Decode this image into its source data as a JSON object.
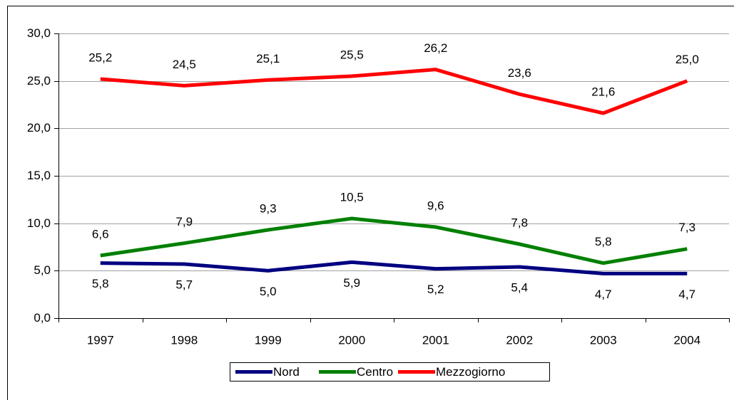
{
  "chart_data": {
    "type": "line",
    "categories": [
      "1997",
      "1998",
      "1999",
      "2000",
      "2001",
      "2002",
      "2003",
      "2004"
    ],
    "series": [
      {
        "name": "Nord",
        "color": "#000080",
        "values": [
          5.8,
          5.7,
          5.0,
          5.9,
          5.2,
          5.4,
          4.7,
          4.7
        ],
        "value_labels": [
          "5,8",
          "5,7",
          "5,0",
          "5,9",
          "5,2",
          "5,4",
          "4,7",
          "4,7"
        ]
      },
      {
        "name": "Centro",
        "color": "#008000",
        "values": [
          6.6,
          7.9,
          9.3,
          10.5,
          9.6,
          7.8,
          5.8,
          7.3
        ],
        "value_labels": [
          "6,6",
          "7,9",
          "9,3",
          "10,5",
          "9,6",
          "7,8",
          "5,8",
          "7,3"
        ]
      },
      {
        "name": "Mezzogiorno",
        "color": "#ff0000",
        "values": [
          25.2,
          24.5,
          25.1,
          25.5,
          26.2,
          23.6,
          21.6,
          25.0
        ],
        "value_labels": [
          "25,2",
          "24,5",
          "25,1",
          "25,5",
          "26,2",
          "23,6",
          "21,6",
          "25,0"
        ]
      }
    ],
    "ylim": [
      0,
      30
    ],
    "yticks": [
      {
        "value": 0,
        "label": "0,0"
      },
      {
        "value": 5,
        "label": "5,0"
      },
      {
        "value": 10,
        "label": "10,0"
      },
      {
        "value": 15,
        "label": "15,0"
      },
      {
        "value": 20,
        "label": "20,0"
      },
      {
        "value": 25,
        "label": "25,0"
      },
      {
        "value": 30,
        "label": "30,0"
      }
    ],
    "grid": true,
    "legend": "bottom"
  }
}
